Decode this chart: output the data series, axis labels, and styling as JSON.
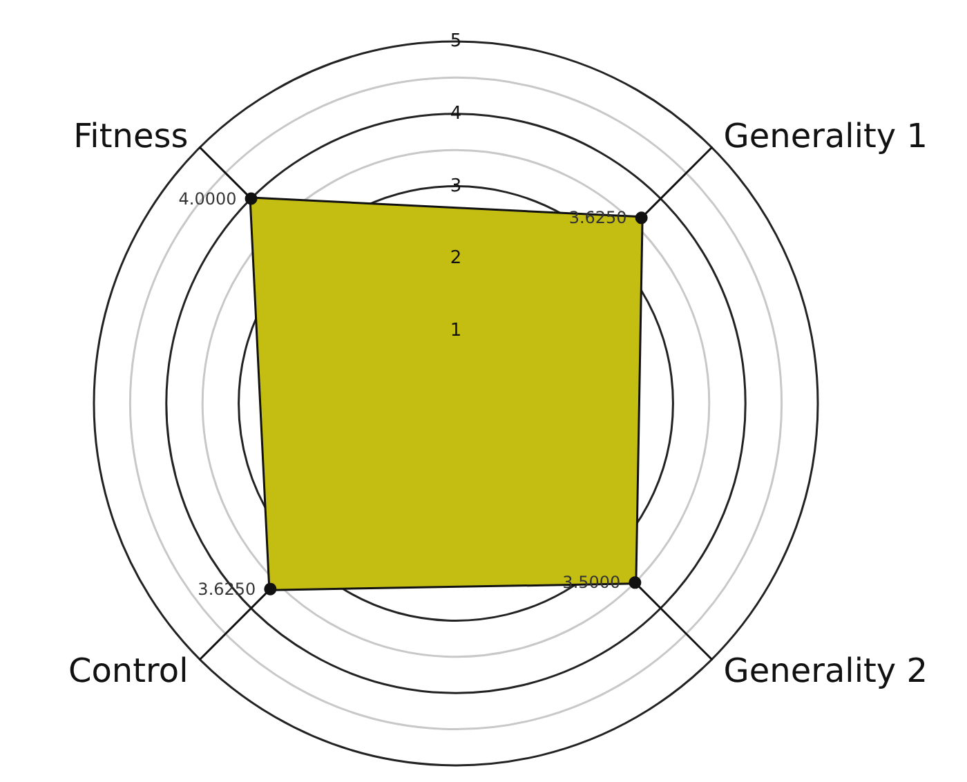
{
  "chart_data": {
    "type": "radar",
    "categories": [
      "Generality 1",
      "Generality 2",
      "Control",
      "Fitness"
    ],
    "series": [
      {
        "color": "#c4be12",
        "values": [
          3.625,
          3.5,
          3.625,
          4.0
        ],
        "value_labels": [
          "3.6250",
          "3.5000",
          "3.6250",
          "4.0000"
        ]
      }
    ],
    "ylim": [
      0,
      5
    ],
    "yticks": [
      1,
      2,
      3,
      4,
      5
    ],
    "marker": "circle"
  }
}
